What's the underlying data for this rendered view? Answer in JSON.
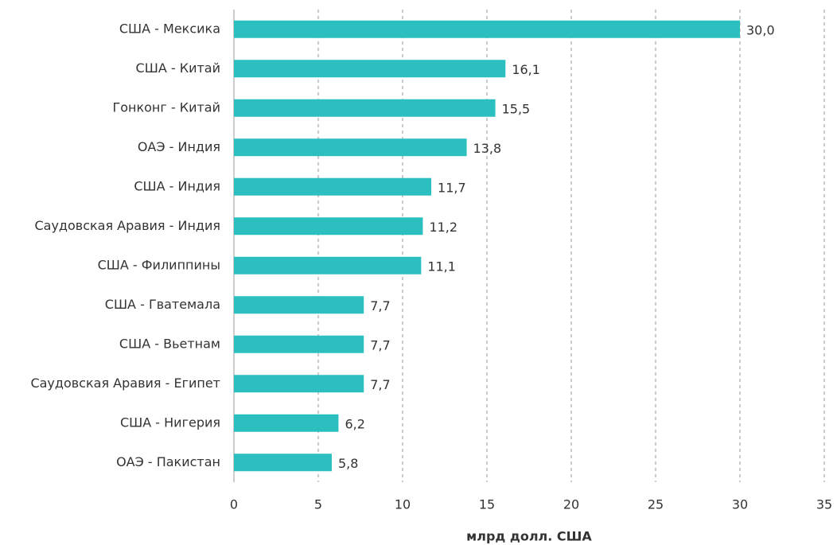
{
  "chart_data": {
    "type": "barh",
    "xlabel": "млрд долл. США",
    "categories": [
      "США - Мексика",
      "США - Китай",
      "Гонконг - Китай",
      "ОАЭ - Индия",
      "США - Индия",
      "Саудовская Аравия - Индия",
      "США - Филиппины",
      "США - Гватемала",
      "США - Вьетнам",
      "Саудовская Аравия - Египет",
      "США - Нигерия",
      "ОАЭ - Пакистан"
    ],
    "values": [
      30.0,
      16.1,
      15.5,
      13.8,
      11.7,
      11.2,
      11.1,
      7.7,
      7.7,
      7.7,
      6.2,
      5.8
    ],
    "value_labels": [
      "30,0",
      "16,1",
      "15,5",
      "13,8",
      "11,7",
      "11,2",
      "11,1",
      "7,7",
      "7,7",
      "7,7",
      "6,2",
      "5,8"
    ],
    "color": "#2bbfbf",
    "xlim": [
      0,
      35
    ],
    "xticks": [
      0,
      5,
      10,
      15,
      20,
      25,
      30,
      35
    ],
    "grid": true
  }
}
